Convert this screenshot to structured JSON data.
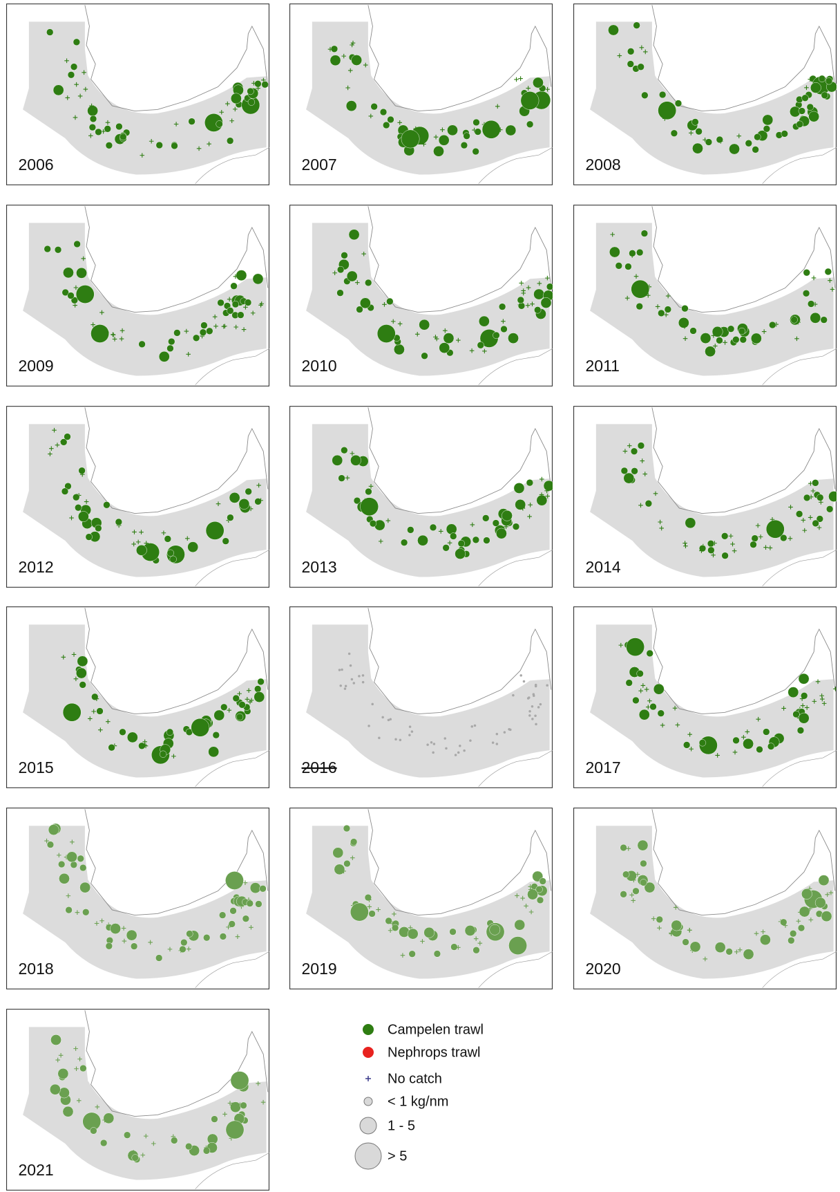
{
  "panels": [
    {
      "year": "2006",
      "color": "#2e7d12"
    },
    {
      "year": "2007",
      "color": "#2e7d12"
    },
    {
      "year": "2008",
      "color": "#2e7d12"
    },
    {
      "year": "2009",
      "color": "#2e7d12"
    },
    {
      "year": "2010",
      "color": "#2e7d12"
    },
    {
      "year": "2011",
      "color": "#2e7d12"
    },
    {
      "year": "2012",
      "color": "#2e7d12"
    },
    {
      "year": "2013",
      "color": "#2e7d12"
    },
    {
      "year": "2014",
      "color": "#2e7d12"
    },
    {
      "year": "2015",
      "color": "#2e7d12"
    },
    {
      "year": "2016",
      "color": "#a8a8a8",
      "struck": true
    },
    {
      "year": "2017",
      "color": "#2e7d12"
    },
    {
      "year": "2018",
      "color": "#6aa050"
    },
    {
      "year": "2019",
      "color": "#6aa050"
    },
    {
      "year": "2020",
      "color": "#6aa050"
    },
    {
      "year": "2021",
      "color": "#6aa050"
    }
  ],
  "legend": {
    "campelen": {
      "label": "Campelen trawl",
      "color": "#2e7d12"
    },
    "nephrops": {
      "label": "Nephrops trawl",
      "color": "#e8221f"
    },
    "no_catch": {
      "label": "No catch",
      "color": "#3a3a8a"
    },
    "small": {
      "label": "< 1 kg/nm"
    },
    "medium": {
      "label": "1 - 5"
    },
    "large": {
      "label": "> 5"
    }
  }
}
